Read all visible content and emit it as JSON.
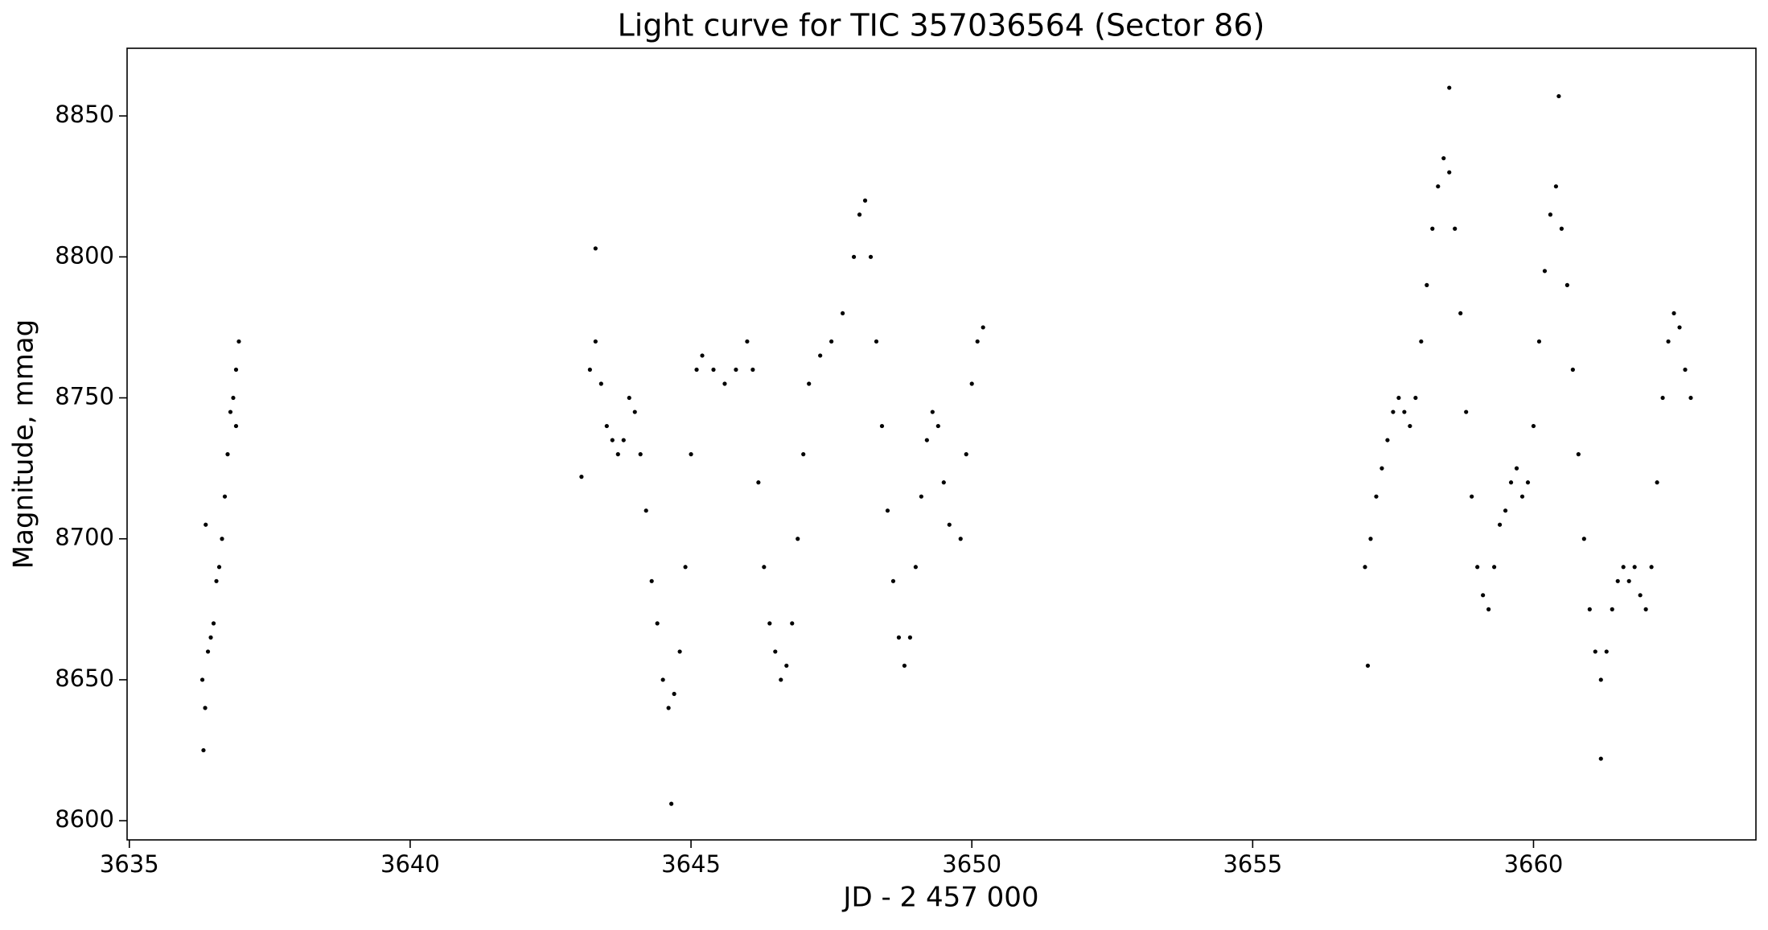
{
  "chart_data": {
    "type": "scatter",
    "title": "Light curve for TIC 357036564 (Sector 86)",
    "x_label": "JD - 2 457 000",
    "y_label": "Magnitude, mmag",
    "color": "#000000",
    "xlim": [
      3634.96,
      3663.96
    ],
    "ylim": [
      8593.2,
      8874
    ],
    "xticks": [
      3635,
      3640,
      3645,
      3650,
      3655,
      3660
    ],
    "yticks": [
      8600,
      8650,
      8700,
      8750,
      8800,
      8850
    ],
    "grid": false,
    "x": [
      3636.3,
      3636.32,
      3636.35,
      3636.36,
      3636.4,
      3636.45,
      3636.5,
      3636.55,
      3636.6,
      3636.65,
      3636.7,
      3636.75,
      3636.8,
      3636.85,
      3636.9,
      3636.9,
      3636.95,
      3643.05,
      3643.2,
      3643.3,
      3643.3,
      3643.4,
      3643.5,
      3643.6,
      3643.7,
      3643.8,
      3643.9,
      3644.0,
      3644.1,
      3644.2,
      3644.3,
      3644.4,
      3644.5,
      3644.6,
      3644.65,
      3644.7,
      3644.8,
      3644.9,
      3645.0,
      3645.1,
      3645.2,
      3645.4,
      3645.6,
      3645.8,
      3646.0,
      3646.1,
      3646.2,
      3646.3,
      3646.4,
      3646.5,
      3646.6,
      3646.7,
      3646.8,
      3646.9,
      3647.0,
      3647.1,
      3647.3,
      3647.5,
      3647.7,
      3647.9,
      3648.0,
      3648.1,
      3648.2,
      3648.3,
      3648.4,
      3648.5,
      3648.6,
      3648.7,
      3648.8,
      3648.9,
      3649.0,
      3649.1,
      3649.2,
      3649.3,
      3649.4,
      3649.5,
      3649.6,
      3649.8,
      3649.9,
      3650.0,
      3650.1,
      3650.2,
      3657.0,
      3657.05,
      3657.1,
      3657.2,
      3657.3,
      3657.4,
      3657.5,
      3657.6,
      3657.7,
      3657.8,
      3657.9,
      3658.0,
      3658.1,
      3658.2,
      3658.3,
      3658.4,
      3658.5,
      3658.5,
      3658.6,
      3658.7,
      3658.8,
      3658.9,
      3659.0,
      3659.1,
      3659.2,
      3659.3,
      3659.4,
      3659.5,
      3659.6,
      3659.7,
      3659.8,
      3659.9,
      3660.0,
      3660.1,
      3660.2,
      3660.3,
      3660.4,
      3660.45,
      3660.5,
      3660.6,
      3660.7,
      3660.8,
      3660.9,
      3661.0,
      3661.1,
      3661.2,
      3661.2,
      3661.3,
      3661.4,
      3661.5,
      3661.6,
      3661.7,
      3661.8,
      3661.9,
      3662.0,
      3662.1,
      3662.2,
      3662.3,
      3662.4,
      3662.5,
      3662.6,
      3662.7,
      3662.8
    ],
    "values": [
      8650,
      8625,
      8640,
      8705,
      8660,
      8665,
      8670,
      8685,
      8690,
      8700,
      8715,
      8730,
      8745,
      8750,
      8760,
      8740,
      8770,
      8722,
      8760,
      8770,
      8803,
      8755,
      8740,
      8735,
      8730,
      8735,
      8750,
      8745,
      8730,
      8710,
      8685,
      8670,
      8650,
      8640,
      8606,
      8645,
      8660,
      8690,
      8730,
      8760,
      8765,
      8760,
      8755,
      8760,
      8770,
      8760,
      8720,
      8690,
      8670,
      8660,
      8650,
      8655,
      8670,
      8700,
      8730,
      8755,
      8765,
      8770,
      8780,
      8800,
      8815,
      8820,
      8800,
      8770,
      8740,
      8710,
      8685,
      8665,
      8655,
      8665,
      8690,
      8715,
      8735,
      8745,
      8740,
      8720,
      8705,
      8700,
      8730,
      8755,
      8770,
      8775,
      8690,
      8655,
      8700,
      8715,
      8725,
      8735,
      8745,
      8750,
      8745,
      8740,
      8750,
      8770,
      8790,
      8810,
      8825,
      8835,
      8830,
      8860,
      8810,
      8780,
      8745,
      8715,
      8690,
      8680,
      8675,
      8690,
      8705,
      8710,
      8720,
      8725,
      8715,
      8720,
      8740,
      8770,
      8795,
      8815,
      8825,
      8857,
      8810,
      8790,
      8760,
      8730,
      8700,
      8675,
      8660,
      8650,
      8622,
      8660,
      8675,
      8685,
      8690,
      8685,
      8690,
      8680,
      8675,
      8690,
      8720,
      8750,
      8770,
      8780,
      8775,
      8760,
      8750
    ]
  }
}
